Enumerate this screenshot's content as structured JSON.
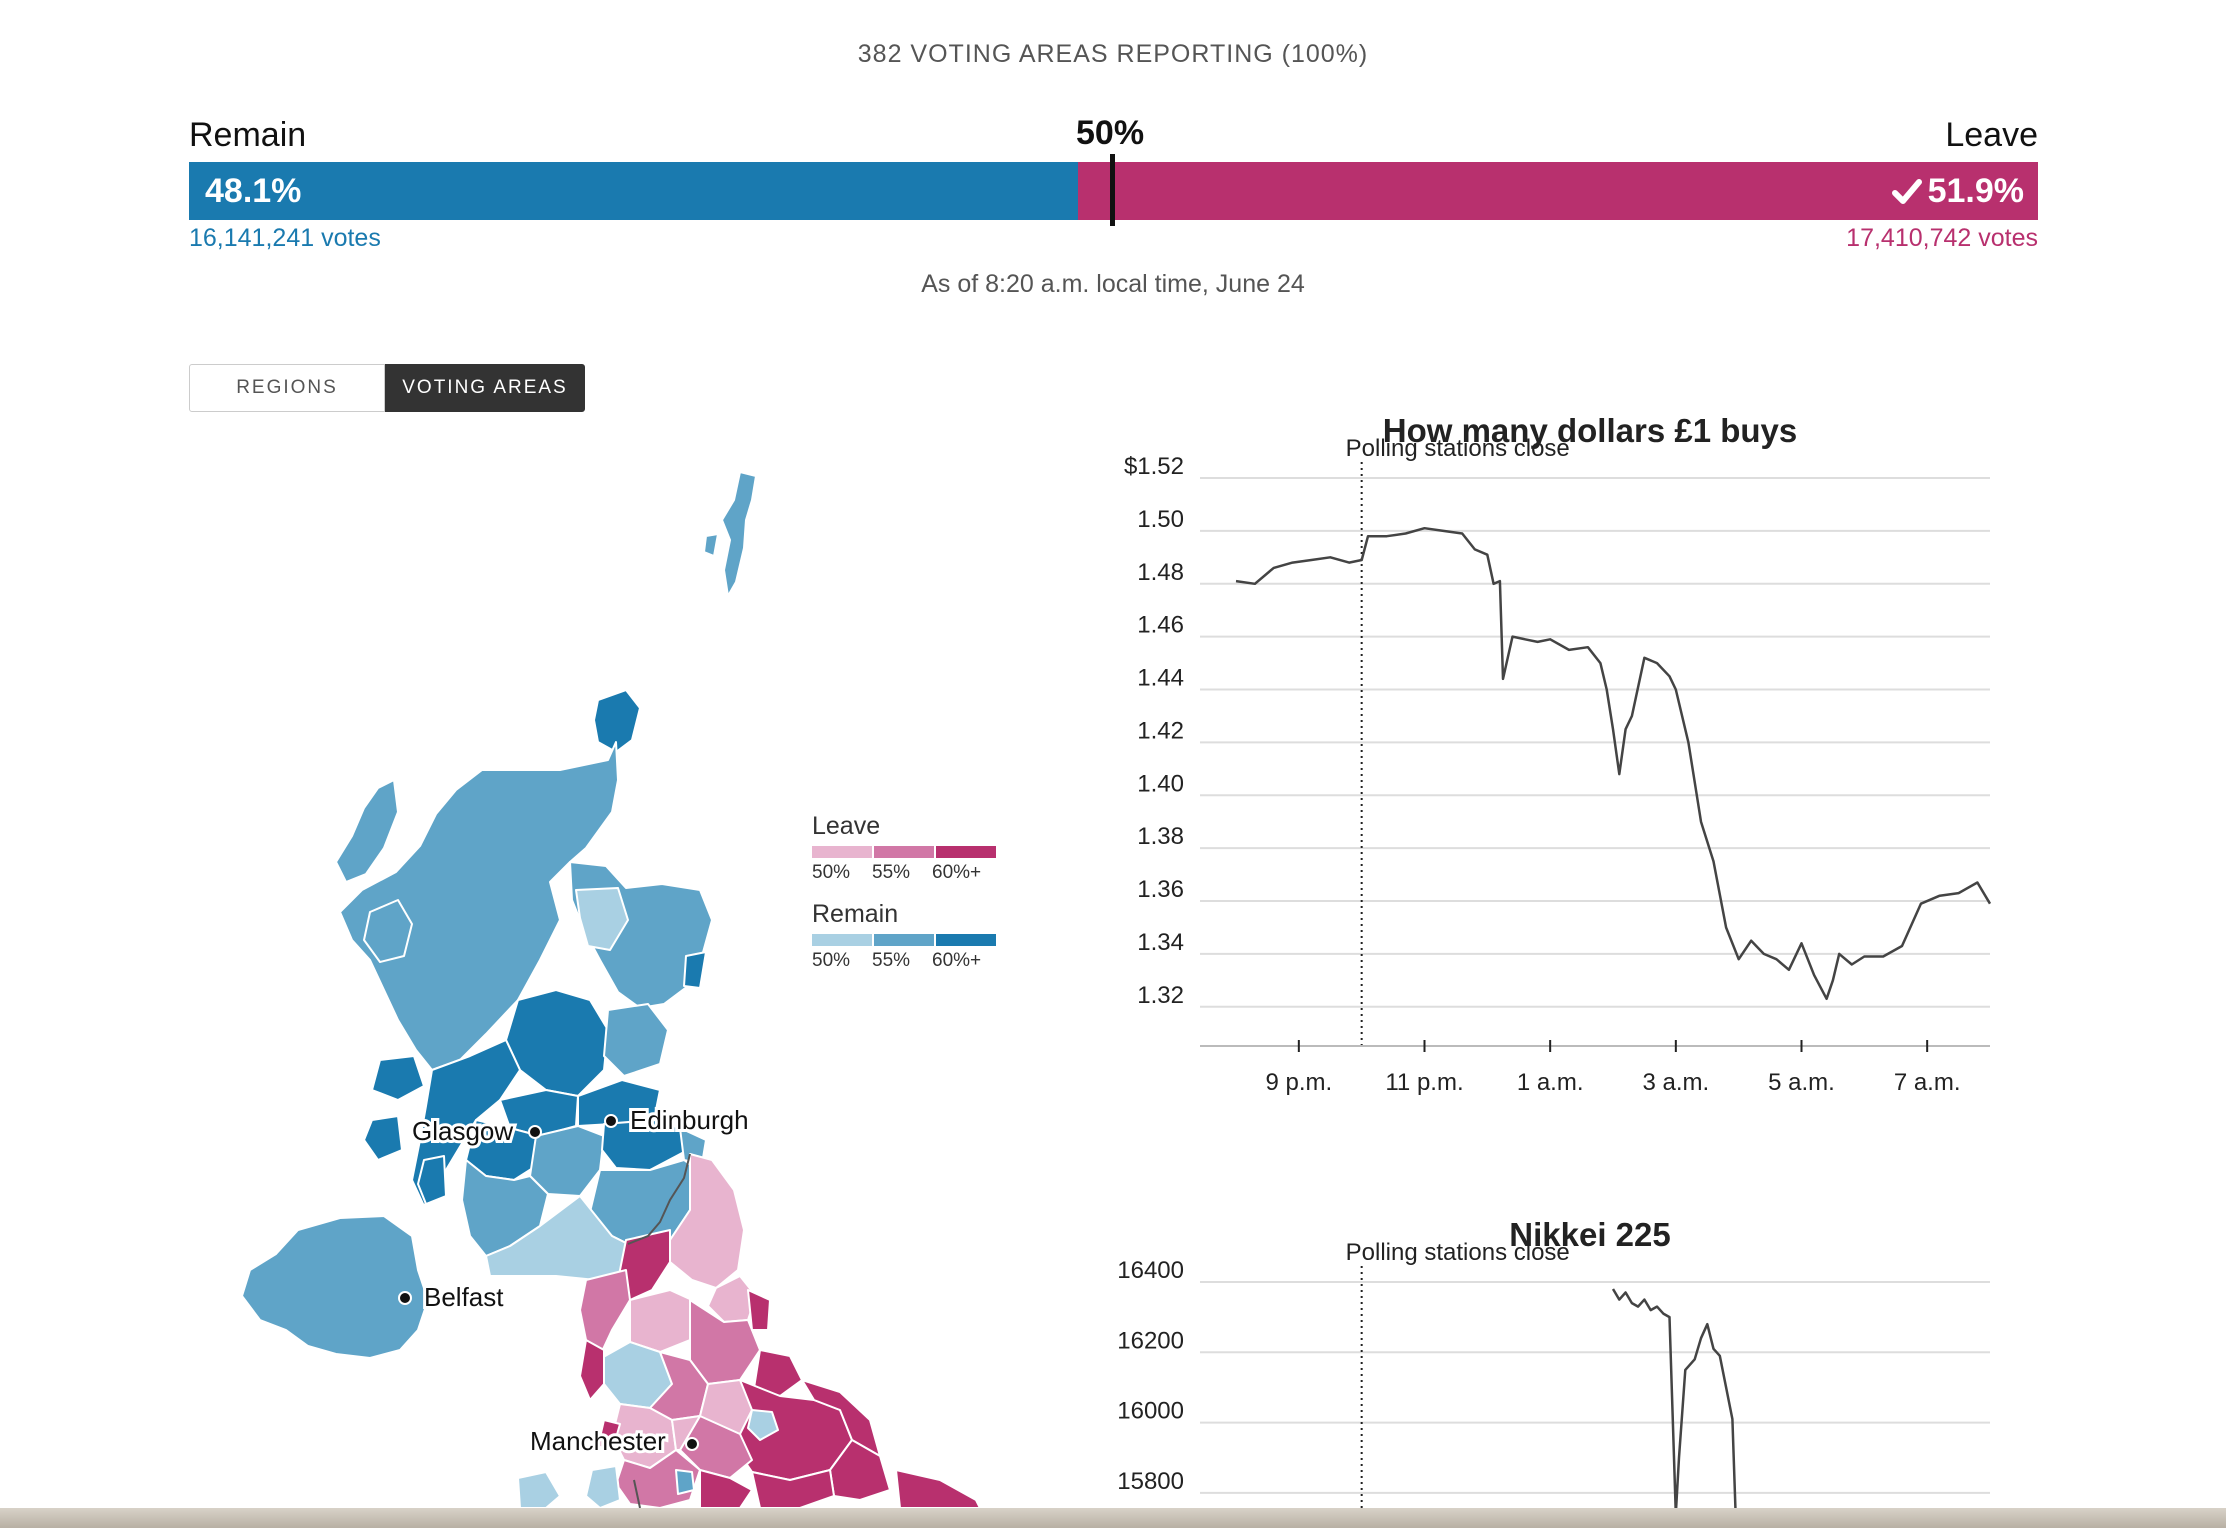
{
  "header": {
    "reporting": "382 VOTING AREAS REPORTING (100%)",
    "remain_label": "Remain",
    "leave_label": "Leave",
    "midpoint_label": "50%",
    "remain_pct": "48.1%",
    "leave_pct": "51.9%",
    "remain_share": 48.1,
    "leave_share": 51.9,
    "remain_votes": "16,141,241 votes",
    "leave_votes": "17,410,742 votes",
    "as_of": "As of 8:20 a.m. local time, June 24",
    "check_icon": "check-icon"
  },
  "toggle": {
    "regions_label": "REGIONS",
    "areas_label": "VOTING AREAS",
    "selected": "VOTING AREAS"
  },
  "legend": {
    "leave_title": "Leave",
    "remain_title": "Remain",
    "ticks": [
      "50%",
      "55%",
      "60%+"
    ],
    "leave_colors": [
      "#e8b4cf",
      "#d177a6",
      "#b8306e"
    ],
    "remain_colors": [
      "#a9d0e3",
      "#5fa4c8",
      "#1a7aaf"
    ]
  },
  "map": {
    "cities": [
      "Glasgow",
      "Edinburgh",
      "Belfast",
      "Manchester"
    ]
  },
  "colors": {
    "remain": "#1a7aaf",
    "leave": "#b8306e",
    "line": "#444444",
    "grid": "#dddddd"
  },
  "chart_data": [
    {
      "type": "line",
      "title": "How many dollars £1 buys",
      "annotation": "Polling stations close",
      "annotation_x": "10 p.m.",
      "y_tick_labels": [
        "$1.52",
        "1.50",
        "1.48",
        "1.46",
        "1.44",
        "1.42",
        "1.40",
        "1.38",
        "1.36",
        "1.34",
        "1.32"
      ],
      "y_ticks": [
        1.52,
        1.5,
        1.48,
        1.46,
        1.44,
        1.42,
        1.4,
        1.38,
        1.36,
        1.34,
        1.32
      ],
      "ylim": [
        1.315,
        1.52
      ],
      "x_tick_labels": [
        "9 p.m.",
        "11 p.m.",
        "1 a.m.",
        "3 a.m.",
        "5 a.m.",
        "7 a.m."
      ],
      "x_ticks_hours": [
        21,
        23,
        25,
        27,
        29,
        31
      ],
      "xlim_hours": [
        20.0,
        32.0
      ],
      "annotation_hour": 22.0,
      "series": [
        {
          "x_hours": [
            20.0,
            20.3,
            20.6,
            20.9,
            21.2,
            21.5,
            21.8,
            22.0,
            22.1,
            22.4,
            22.7,
            23.0,
            23.3,
            23.6,
            23.8,
            24.0,
            24.1,
            24.2,
            24.25,
            24.4,
            24.6,
            24.8,
            25.0,
            25.3,
            25.6,
            25.8,
            25.9,
            26.0,
            26.1,
            26.2,
            26.3,
            26.5,
            26.7,
            26.9,
            27.0,
            27.2,
            27.4,
            27.6,
            27.8,
            28.0,
            28.2,
            28.4,
            28.6,
            28.8,
            29.0,
            29.2,
            29.4,
            29.5,
            29.6,
            29.8,
            30.0,
            30.3,
            30.6,
            30.9,
            31.2,
            31.5,
            31.8,
            32.0
          ],
          "values": [
            1.481,
            1.48,
            1.486,
            1.488,
            1.489,
            1.49,
            1.488,
            1.489,
            1.498,
            1.498,
            1.499,
            1.501,
            1.5,
            1.499,
            1.493,
            1.491,
            1.48,
            1.481,
            1.444,
            1.46,
            1.459,
            1.458,
            1.459,
            1.455,
            1.456,
            1.45,
            1.44,
            1.425,
            1.408,
            1.425,
            1.43,
            1.452,
            1.45,
            1.445,
            1.44,
            1.42,
            1.39,
            1.375,
            1.35,
            1.338,
            1.345,
            1.34,
            1.338,
            1.334,
            1.344,
            1.332,
            1.323,
            1.33,
            1.34,
            1.336,
            1.339,
            1.339,
            1.343,
            1.359,
            1.362,
            1.363,
            1.367,
            1.359
          ]
        }
      ]
    },
    {
      "type": "line",
      "title": "Nikkei 225",
      "annotation": "Polling stations close",
      "annotation_x": "10 p.m.",
      "y_tick_labels": [
        "16400",
        "16200",
        "16000",
        "15800"
      ],
      "y_ticks": [
        16400,
        16200,
        16000,
        15800
      ],
      "ylim": [
        15700,
        16400
      ],
      "xlim_hours": [
        20.0,
        32.0
      ],
      "annotation_hour": 22.0,
      "series": [
        {
          "x_hours": [
            26.0,
            26.1,
            26.2,
            26.3,
            26.4,
            26.5,
            26.6,
            26.7,
            26.8,
            26.9,
            27.0,
            27.05,
            27.15,
            27.3,
            27.4,
            27.5,
            27.6,
            27.7,
            27.8,
            27.9,
            27.95
          ],
          "values": [
            16380,
            16350,
            16370,
            16340,
            16330,
            16350,
            16320,
            16330,
            16310,
            16300,
            15740,
            15900,
            16150,
            16180,
            16240,
            16280,
            16210,
            16190,
            16100,
            16010,
            15750
          ]
        }
      ]
    }
  ]
}
